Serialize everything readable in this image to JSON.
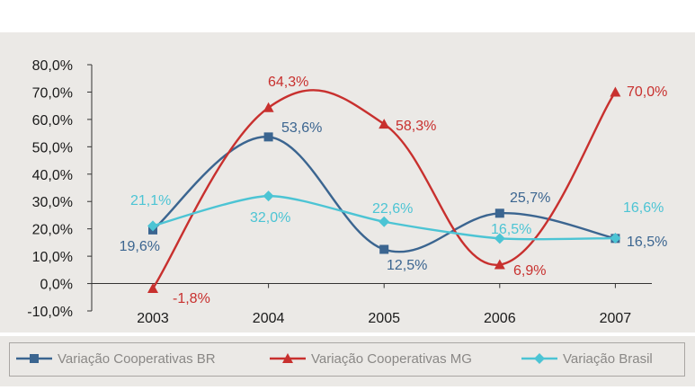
{
  "chart_data": {
    "type": "line",
    "categories": [
      "2003",
      "2004",
      "2005",
      "2006",
      "2007"
    ],
    "ylim": [
      -10,
      80
    ],
    "yticks": [
      "-10,0%",
      "0,0%",
      "10,0%",
      "20,0%",
      "30,0%",
      "40,0%",
      "50,0%",
      "60,0%",
      "70,0%",
      "80,0%"
    ],
    "legend_position": "bottom",
    "grid": false,
    "series": [
      {
        "name": "Variação Cooperativas BR",
        "color": "#3b6590",
        "marker": "square",
        "values": [
          19.6,
          53.6,
          12.5,
          25.7,
          16.5
        ],
        "labels": [
          "19,6%",
          "53,6%",
          "12,5%",
          "25,7%",
          "16,5%"
        ]
      },
      {
        "name": "Variação Cooperativas MG",
        "color": "#c8302e",
        "marker": "triangle",
        "values": [
          -1.8,
          64.3,
          58.3,
          6.9,
          70.0
        ],
        "labels": [
          "-1,8%",
          "64,3%",
          "58,3%",
          "6,9%",
          "70,0%"
        ]
      },
      {
        "name": "Variação Brasil",
        "color": "#4cc4d4",
        "marker": "diamond",
        "values": [
          21.1,
          32.0,
          22.6,
          16.5,
          16.6
        ],
        "labels": [
          "21,1%",
          "32,0%",
          "22,6%",
          "16,5%",
          "16,6%"
        ]
      }
    ]
  }
}
